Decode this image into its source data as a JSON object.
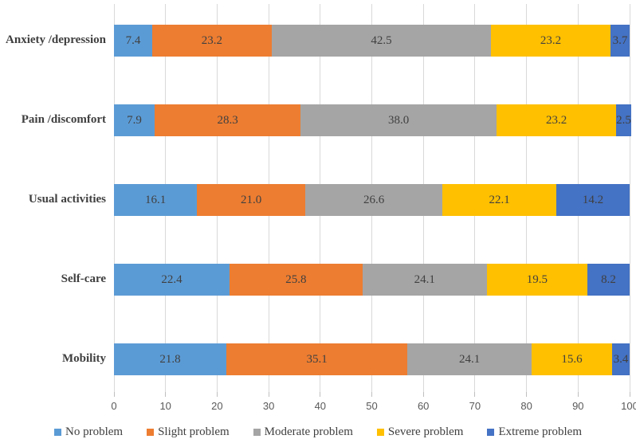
{
  "chart_data": {
    "type": "bar",
    "variant": "stacked-horizontal",
    "title": "",
    "xlabel": "",
    "ylabel": "",
    "xlim": [
      0,
      100
    ],
    "x_ticks": [
      0,
      10,
      20,
      30,
      40,
      50,
      60,
      70,
      80,
      90,
      100
    ],
    "grid": true,
    "legend_position": "bottom",
    "categories": [
      "Anxiety /depression",
      "Pain /discomfort",
      "Usual activities",
      "Self-care",
      "Mobility"
    ],
    "series": [
      {
        "name": "No problem",
        "color": "#5b9bd5",
        "values": [
          7.4,
          7.9,
          16.1,
          22.4,
          21.8
        ]
      },
      {
        "name": "Slight problem",
        "color": "#ed7d31",
        "values": [
          23.2,
          28.3,
          21.0,
          25.8,
          35.1
        ]
      },
      {
        "name": "Moderate problem",
        "color": "#a5a5a5",
        "values": [
          42.5,
          38.0,
          26.6,
          24.1,
          24.1
        ]
      },
      {
        "name": "Severe problem",
        "color": "#ffc000",
        "values": [
          23.2,
          23.2,
          22.1,
          19.5,
          15.6
        ]
      },
      {
        "name": "Extreme problem",
        "color": "#4472c4",
        "values": [
          3.7,
          2.5,
          14.2,
          8.2,
          3.4
        ]
      }
    ],
    "value_label_decimals": 1,
    "colors": {
      "gridline": "#d9d9d9",
      "tick_mark": "#bfbfbf",
      "category_text": "#3f3f3f",
      "value_text": "#404040",
      "axis_text": "#595959",
      "background": "#ffffff"
    }
  }
}
